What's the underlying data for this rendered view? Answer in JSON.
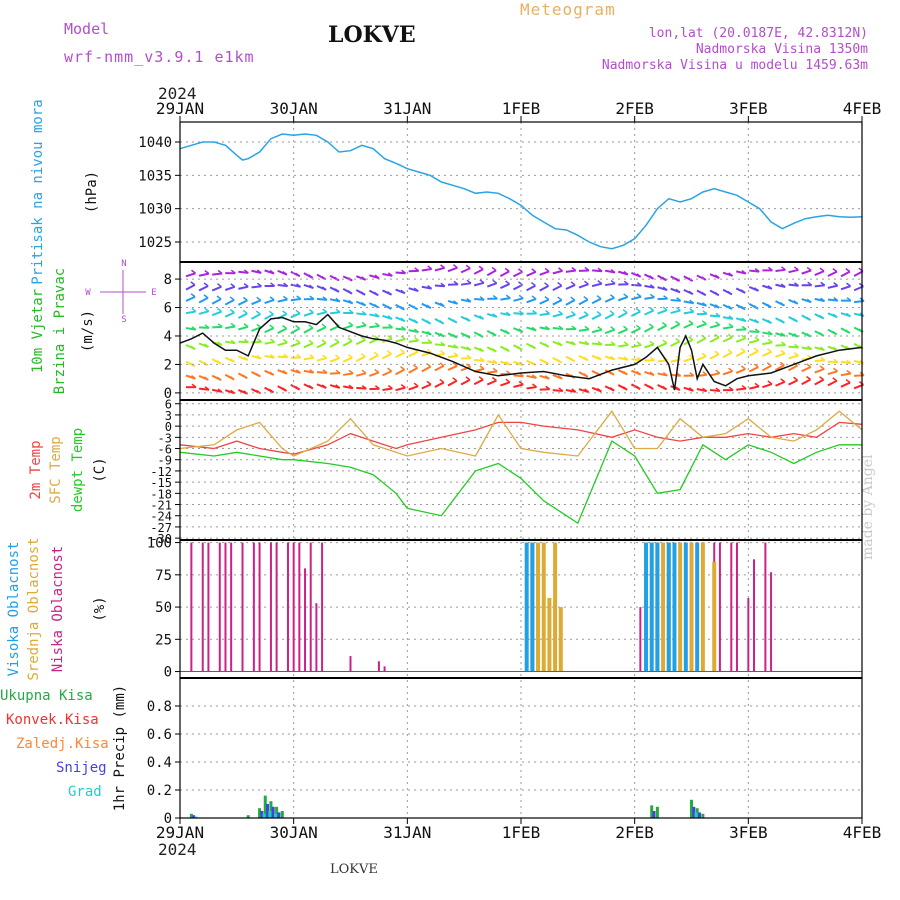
{
  "header": {
    "model_label": "Model",
    "model_name": "wrf-nmm_v3.9.1 e1km",
    "station": "LOKVE",
    "product": "Meteogram",
    "coords": "lon,lat (20.0187E, 42.8312N)",
    "elevation": "Nadmorska Visina 1350m",
    "model_elevation": "Nadmorska Visina u modelu 1459.63m",
    "year_top": "2024",
    "year_bottom": "2024",
    "footer_station": "LOKVE",
    "watermark": "made by Angel"
  },
  "colors": {
    "pressure": "#2aa3e6",
    "wind_label": "#22bb22",
    "temp_2m": "#ee4444",
    "temp_sfc": "#ddaa44",
    "dewpoint": "#22cc22",
    "cloud_high": "#22a0e6",
    "cloud_mid": "#ddaa33",
    "cloud_low": "#cc2288",
    "precip_total": "#22aa44",
    "precip_conv": "#ee3333",
    "precip_frozen": "#ff8833",
    "precip_snow": "#4444dd",
    "precip_graupel": "#22cccc",
    "header_purple": "#b34dcc",
    "header_orange": "#e8b060"
  },
  "time_axis": {
    "labels": [
      "29JAN",
      "30JAN",
      "31JAN",
      "1FEB",
      "2FEB",
      "3FEB",
      "4FEB"
    ],
    "start_day": 0,
    "end_day": 6
  },
  "panels": {
    "pressure": {
      "label": "Pritisak na nivou mora",
      "unit": "(hPa)",
      "ylim": [
        1022,
        1043
      ],
      "ticks": [
        1025,
        1030,
        1035,
        1040
      ]
    },
    "wind": {
      "label1": "10m Vjetar",
      "label2": "Brzina i Pravac",
      "unit": "(m/s)",
      "compass": [
        "N",
        "W",
        "E",
        "S"
      ],
      "ylim": [
        -0.5,
        9.2
      ],
      "ticks": [
        0,
        2,
        4,
        6,
        8
      ]
    },
    "temperature": {
      "label1": "2m Temp",
      "label2": "SFC Temp",
      "label3": "dewpt Temp",
      "unit": "(C)",
      "ylim": [
        -30.5,
        7
      ],
      "ticks": [
        6,
        3,
        0,
        -3,
        -6,
        -9,
        -12,
        -15,
        -18,
        -21,
        -24,
        -27,
        -30
      ]
    },
    "clouds": {
      "label1": "Visoka Oblacnost",
      "label2": "Srednja Oblacnost",
      "label3": "Niska Oblacnost",
      "unit": "(%)",
      "ylim": [
        -5,
        102
      ],
      "ticks": [
        0,
        25,
        50,
        75,
        100
      ]
    },
    "precip": {
      "labels": [
        "Ukupna Kisa",
        "Konvek.Kisa",
        "Zaledj.Kisa",
        "Snijeg",
        "Grad"
      ],
      "unit": "1hr Precip (mm)",
      "ylim": [
        0,
        1.0
      ],
      "ticks": [
        0,
        0.2,
        0.4,
        0.6,
        0.8
      ]
    }
  },
  "chart_data": [
    {
      "type": "line",
      "panel": "pressure",
      "xlabel": "",
      "ylabel": "(hPa)",
      "x": [
        0,
        0.1,
        0.2,
        0.3,
        0.4,
        0.5,
        0.55,
        0.6,
        0.7,
        0.8,
        0.9,
        1.0,
        1.1,
        1.2,
        1.3,
        1.4,
        1.5,
        1.6,
        1.7,
        1.8,
        1.9,
        2.0,
        2.1,
        2.2,
        2.3,
        2.4,
        2.5,
        2.6,
        2.7,
        2.8,
        2.9,
        3.0,
        3.1,
        3.2,
        3.3,
        3.4,
        3.5,
        3.6,
        3.7,
        3.8,
        3.9,
        4.0,
        4.1,
        4.2,
        4.3,
        4.4,
        4.5,
        4.6,
        4.7,
        4.8,
        4.9,
        5.0,
        5.1,
        5.2,
        5.3,
        5.4,
        5.5,
        5.6,
        5.7,
        5.8,
        5.9,
        6.0
      ],
      "y": [
        1039,
        1039.5,
        1040,
        1040,
        1039.5,
        1038,
        1037.3,
        1037.5,
        1038.5,
        1040.5,
        1041.2,
        1041,
        1041.2,
        1041,
        1040,
        1038.5,
        1038.7,
        1039.5,
        1039,
        1037.5,
        1036.8,
        1036,
        1035.5,
        1035,
        1034,
        1033.5,
        1033,
        1032.3,
        1032.5,
        1032.3,
        1031.5,
        1030.5,
        1029,
        1028,
        1027,
        1026.8,
        1026,
        1025,
        1024.3,
        1024,
        1024.5,
        1025.5,
        1027.5,
        1030,
        1031.5,
        1031,
        1031.5,
        1032.5,
        1033,
        1032.5,
        1032,
        1031,
        1030,
        1028,
        1027,
        1027.8,
        1028.5,
        1028.8,
        1029,
        1028.8,
        1028.7,
        1028.8
      ],
      "ylim": [
        1022,
        1043
      ]
    },
    {
      "type": "line",
      "panel": "wind",
      "name": "",
      "xlabel": "",
      "ylabel": "(m/s)",
      "x": [
        0,
        0.1,
        0.2,
        0.3,
        0.4,
        0.5,
        0.6,
        0.7,
        0.8,
        0.9,
        1.0,
        1.1,
        1.2,
        1.3,
        1.4,
        1.5,
        1.6,
        1.7,
        1.8,
        1.9,
        2.0,
        2.2,
        2.4,
        2.6,
        2.8,
        3.0,
        3.2,
        3.4,
        3.6,
        3.8,
        4.0,
        4.1,
        4.2,
        4.3,
        4.35,
        4.4,
        4.45,
        4.5,
        4.55,
        4.6,
        4.7,
        4.8,
        4.9,
        5.0,
        5.2,
        5.4,
        5.6,
        5.8,
        6.0
      ],
      "y": [
        3.5,
        3.8,
        4.2,
        3.5,
        3.0,
        3.0,
        2.6,
        4.5,
        5.2,
        5.3,
        5.0,
        5.0,
        4.8,
        5.5,
        4.6,
        4.3,
        4.0,
        3.8,
        3.7,
        3.5,
        3.2,
        2.8,
        2.2,
        1.5,
        1.2,
        1.4,
        1.5,
        1.2,
        1.0,
        1.6,
        2.0,
        2.5,
        3.2,
        2.0,
        0.2,
        3.2,
        4.0,
        3.0,
        1.0,
        2.0,
        0.8,
        0.5,
        1.0,
        1.2,
        1.4,
        2.0,
        2.6,
        3.0,
        3.2
      ],
      "ylim": [
        -0.5,
        9.2
      ]
    },
    {
      "type": "line",
      "panel": "temperature",
      "series": [
        {
          "name": "2m Temp",
          "color": "#ee4444",
          "x": [
            0,
            0.3,
            0.5,
            0.7,
            0.9,
            1.0,
            1.3,
            1.5,
            1.7,
            1.9,
            2.0,
            2.3,
            2.6,
            2.8,
            3.0,
            3.2,
            3.5,
            3.8,
            4.0,
            4.2,
            4.4,
            4.6,
            4.8,
            5.0,
            5.2,
            5.4,
            5.6,
            5.8,
            6.0
          ],
          "y": [
            -5,
            -6,
            -4,
            -6,
            -7,
            -7.5,
            -5,
            -2,
            -4,
            -6,
            -5,
            -3,
            -1,
            1,
            1,
            0,
            -1,
            -3,
            -1,
            -3,
            -4,
            -3,
            -3,
            -2,
            -3,
            -2,
            -3,
            1,
            0.5
          ]
        },
        {
          "name": "SFC Temp",
          "color": "#ddaa44",
          "x": [
            0,
            0.3,
            0.5,
            0.7,
            0.9,
            1.0,
            1.3,
            1.5,
            1.7,
            1.9,
            2.0,
            2.3,
            2.6,
            2.8,
            3.0,
            3.2,
            3.5,
            3.8,
            4.0,
            4.2,
            4.4,
            4.6,
            4.8,
            5.0,
            5.2,
            5.4,
            5.6,
            5.8,
            6.0
          ],
          "y": [
            -6,
            -5,
            -1,
            1,
            -6,
            -8,
            -4,
            2,
            -5,
            -7,
            -8,
            -6,
            -8,
            3,
            -6,
            -7,
            -8,
            4,
            -6,
            -6,
            2,
            -3,
            -2,
            2,
            -3,
            -4,
            -1,
            4,
            -1
          ]
        },
        {
          "name": "dewpt Temp",
          "color": "#22cc22",
          "x": [
            0,
            0.3,
            0.5,
            0.7,
            0.9,
            1.0,
            1.3,
            1.5,
            1.7,
            1.9,
            2.0,
            2.3,
            2.6,
            2.8,
            3.0,
            3.2,
            3.5,
            3.8,
            4.0,
            4.2,
            4.4,
            4.6,
            4.8,
            5.0,
            5.2,
            5.4,
            5.6,
            5.8,
            6.0
          ],
          "y": [
            -7,
            -8,
            -7,
            -8,
            -9,
            -9,
            -10,
            -11,
            -13,
            -18,
            -22,
            -24,
            -12,
            -10,
            -14,
            -20,
            -26,
            -4,
            -8,
            -18,
            -17,
            -5,
            -9,
            -5,
            -7,
            -10,
            -7,
            -5,
            -5
          ]
        }
      ],
      "ylim": [
        -30.5,
        7
      ]
    },
    {
      "type": "bar",
      "panel": "clouds",
      "series": [
        {
          "name": "Niska Oblacnost",
          "color": "#cc2288",
          "x": [
            0.1,
            0.2,
            0.25,
            0.35,
            0.4,
            0.45,
            0.55,
            0.65,
            0.7,
            0.8,
            0.85,
            0.95,
            1.0,
            1.05,
            1.1,
            1.15,
            1.2,
            1.25,
            1.5,
            1.75,
            1.8,
            4.05,
            4.1,
            4.2,
            4.3,
            4.35,
            4.4,
            4.5,
            4.6,
            4.7,
            4.75,
            4.85,
            4.9,
            5.0,
            5.05,
            5.15,
            5.2,
            6.45
          ],
          "y": [
            100,
            100,
            100,
            100,
            100,
            100,
            100,
            100,
            100,
            100,
            100,
            100,
            100,
            100,
            80,
            100,
            53,
            100,
            12,
            8,
            4,
            50,
            42,
            100,
            100,
            100,
            100,
            100,
            100,
            100,
            100,
            100,
            100,
            57,
            87,
            100,
            77,
            10
          ]
        },
        {
          "name": "Srednja Oblacnost",
          "color": "#ddaa33",
          "x": [
            3.1,
            3.15,
            3.2,
            3.25,
            3.3,
            3.35,
            4.2,
            4.25,
            4.3,
            4.4,
            4.5,
            4.6,
            4.7
          ],
          "y": [
            100,
            100,
            100,
            57,
            100,
            50,
            100,
            100,
            100,
            100,
            100,
            100,
            85
          ]
        },
        {
          "name": "Visoka Oblacnost",
          "color": "#22a0e6",
          "x": [
            3.05,
            3.1,
            4.1,
            4.15,
            4.2,
            4.3,
            4.35,
            4.45,
            4.55
          ],
          "y": [
            100,
            100,
            100,
            100,
            100,
            100,
            100,
            100,
            100
          ]
        }
      ],
      "ylim": [
        -5,
        102
      ]
    },
    {
      "type": "bar",
      "panel": "precip",
      "series": [
        {
          "name": "Ukupna Kisa",
          "color": "#22aa44",
          "x": [
            0.1,
            0.6,
            0.7,
            0.75,
            0.8,
            0.85,
            0.9,
            4.15,
            4.2,
            4.5,
            4.55,
            4.6
          ],
          "y": [
            0.03,
            0.02,
            0.07,
            0.16,
            0.12,
            0.08,
            0.05,
            0.09,
            0.08,
            0.13,
            0.07,
            0.03
          ]
        },
        {
          "name": "Snijeg",
          "color": "#4444dd",
          "x": [
            0.12,
            0.72,
            0.77,
            0.82,
            0.87,
            4.17,
            4.52,
            4.57
          ],
          "y": [
            0.02,
            0.05,
            0.1,
            0.08,
            0.04,
            0.05,
            0.08,
            0.04
          ]
        },
        {
          "name": "Grad",
          "color": "#22cccc",
          "x": [
            0.14,
            0.74,
            0.79,
            0.84,
            4.54
          ],
          "y": [
            0.01,
            0.03,
            0.05,
            0.03,
            0.04
          ]
        }
      ],
      "ylim": [
        0,
        1.0
      ]
    }
  ]
}
